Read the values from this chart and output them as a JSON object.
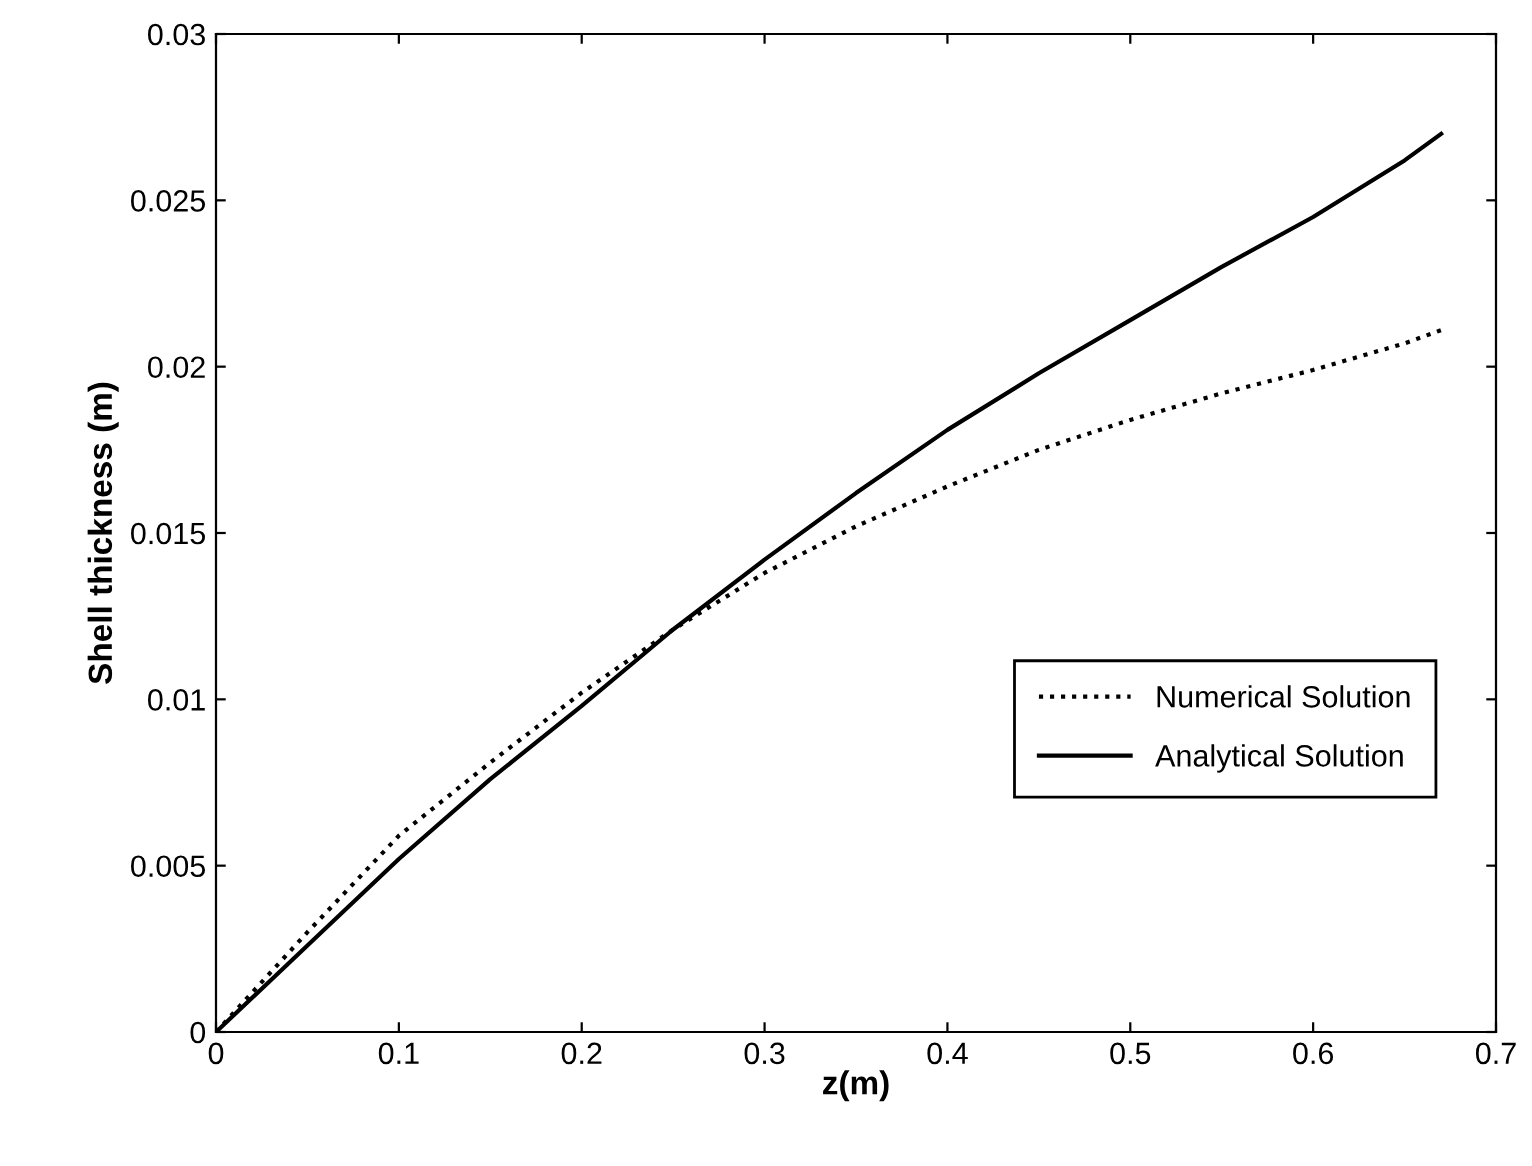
{
  "chart_data": {
    "type": "line",
    "xlabel": "z(m)",
    "ylabel": "Shell thickness (m)",
    "xlim": [
      0,
      0.7
    ],
    "xticks": [
      0,
      0.1,
      0.2,
      0.3,
      0.4,
      0.5,
      0.6,
      0.7
    ],
    "ylim": [
      0,
      0.03
    ],
    "yticks": [
      0,
      0.005,
      0.01,
      0.015,
      0.02,
      0.025,
      0.03
    ],
    "grid": false,
    "legend": "bottom right",
    "x": [
      0,
      0.05,
      0.1,
      0.15,
      0.2,
      0.25,
      0.3,
      0.35,
      0.4,
      0.45,
      0.5,
      0.55,
      0.6,
      0.65,
      0.67
    ],
    "series": [
      {
        "name": "Numerical Solution",
        "color": "#000000",
        "line_style": "dotted",
        "values": [
          0,
          0.003,
          0.0059,
          0.0081,
          0.0102,
          0.0121,
          0.0138,
          0.0152,
          0.0164,
          0.0175,
          0.0184,
          0.0192,
          0.0199,
          0.0207,
          0.0211
        ]
      },
      {
        "name": "Analytical Solution",
        "color": "#000000",
        "line_style": "solid",
        "values": [
          0,
          0.0026,
          0.0052,
          0.0076,
          0.0098,
          0.0121,
          0.0142,
          0.0162,
          0.0181,
          0.0198,
          0.0214,
          0.023,
          0.0245,
          0.0262,
          0.027
        ]
      }
    ]
  }
}
